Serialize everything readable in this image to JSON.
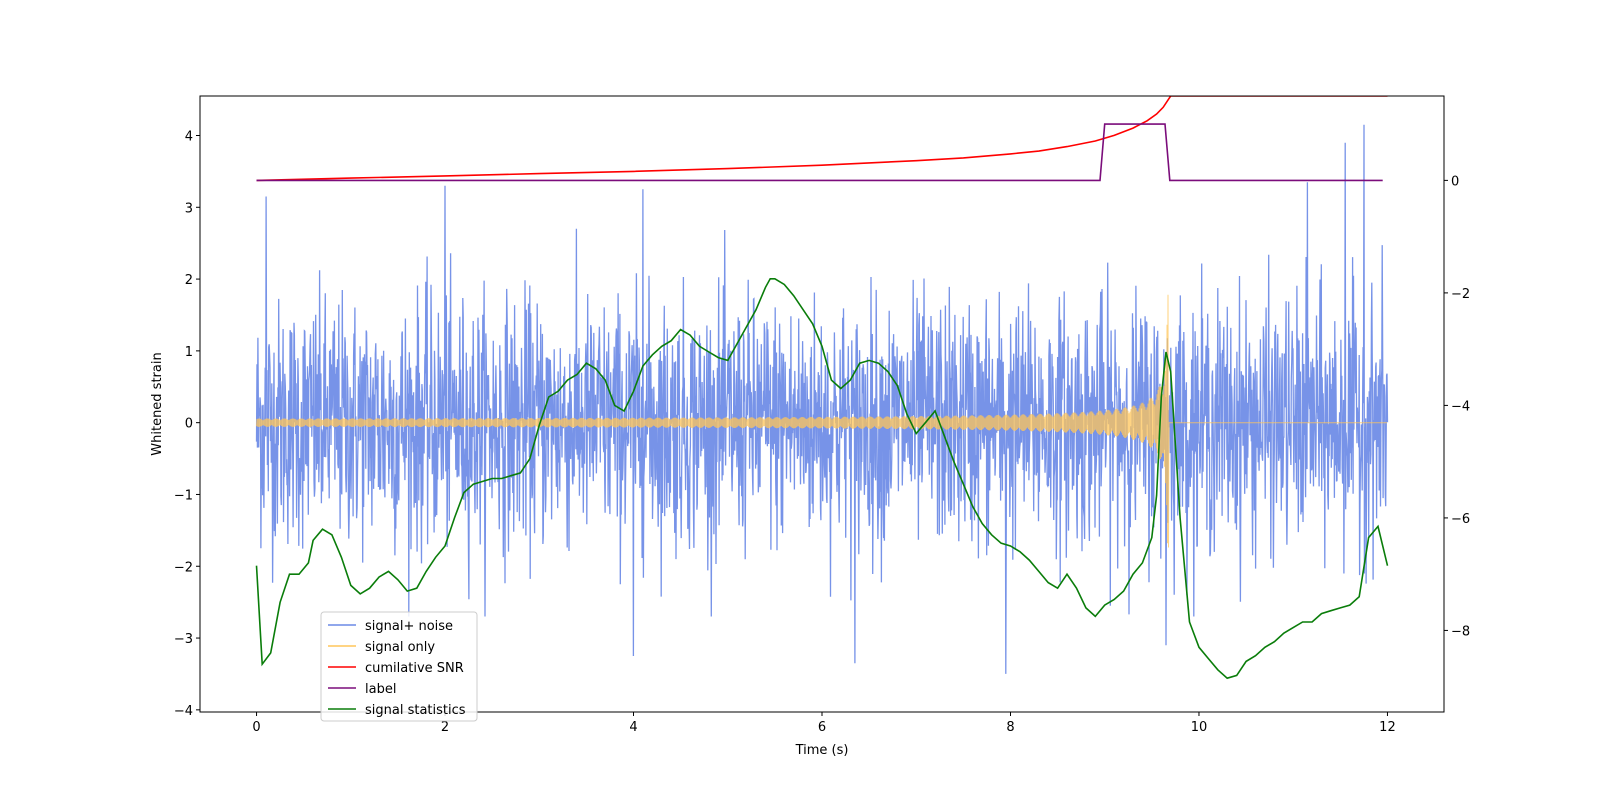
{
  "chart_data": {
    "type": "line",
    "title": "",
    "xlabel": "Time (s)",
    "ylabel": "Whitened strain",
    "xlim": [
      -0.6,
      12.6
    ],
    "ylim": [
      -4.03,
      4.55
    ],
    "y2lim": [
      -9.45,
      1.5
    ],
    "xticks": [
      0,
      2,
      4,
      6,
      8,
      10,
      12
    ],
    "xtick_labels": [
      "0",
      "2",
      "4",
      "6",
      "8",
      "10",
      "12"
    ],
    "yticks": [
      -4,
      -3,
      -2,
      -1,
      0,
      1,
      2,
      3,
      4
    ],
    "ytick_labels": [
      "−4",
      "−3",
      "−2",
      "−1",
      "0",
      "1",
      "2",
      "3",
      "4"
    ],
    "y2ticks": [
      -8,
      -6,
      -4,
      -2,
      0
    ],
    "y2tick_labels": [
      "−8",
      "−6",
      "−4",
      "−2",
      "0"
    ],
    "legend_position": "lower-left",
    "series": [
      {
        "name": "signal+ noise",
        "axis": "left",
        "color": "#6b8ae6",
        "kind": "noise",
        "x_range": [
          0,
          12
        ],
        "noise_std": 0.85,
        "envelope_max": 2.7,
        "envelope_min": -2.7,
        "notable_peaks": [
          [
            2.0,
            3.3
          ],
          [
            11.75,
            4.15
          ],
          [
            11.55,
            3.9
          ],
          [
            11.15,
            3.35
          ],
          [
            0.1,
            3.15
          ],
          [
            4.1,
            3.25
          ],
          [
            7.95,
            -3.5
          ],
          [
            9.65,
            -3.1
          ],
          [
            6.35,
            -3.35
          ],
          [
            4.0,
            -3.25
          ]
        ]
      },
      {
        "name": "signal only",
        "axis": "left",
        "color": "#ffc55a",
        "kind": "chirp",
        "x_range": [
          0,
          9.68
        ],
        "amplitude_start": 0.03,
        "amplitude_peak": 1.8,
        "merger_time": 9.68,
        "post_merger": 0.0
      },
      {
        "name": "cumilative SNR",
        "axis": "right",
        "color": "#ff0000",
        "x": [
          0,
          1,
          2,
          3,
          4,
          5,
          6,
          6.5,
          7,
          7.5,
          8,
          8.3,
          8.6,
          8.9,
          9.1,
          9.3,
          9.45,
          9.55,
          9.62,
          9.68,
          9.7,
          12
        ],
        "y": [
          0.0,
          0.04,
          0.08,
          0.12,
          0.16,
          0.21,
          0.27,
          0.31,
          0.35,
          0.4,
          0.47,
          0.52,
          0.6,
          0.7,
          0.8,
          0.93,
          1.06,
          1.18,
          1.3,
          1.45,
          1.5,
          1.5
        ]
      },
      {
        "name": "label",
        "axis": "right",
        "color": "#7b0d7b",
        "x": [
          0,
          8.95,
          9.0,
          9.64,
          9.69,
          11.95
        ],
        "y": [
          0,
          0,
          1,
          1,
          0,
          0
        ]
      },
      {
        "name": "signal statistics",
        "axis": "right",
        "color": "#0a7d0a",
        "x": [
          0,
          0.06,
          0.15,
          0.25,
          0.35,
          0.45,
          0.55,
          0.6,
          0.7,
          0.8,
          0.9,
          1.0,
          1.1,
          1.2,
          1.3,
          1.4,
          1.5,
          1.6,
          1.7,
          1.8,
          1.9,
          2.0,
          2.1,
          2.2,
          2.3,
          2.4,
          2.5,
          2.6,
          2.7,
          2.8,
          2.9,
          3.0,
          3.1,
          3.2,
          3.3,
          3.4,
          3.5,
          3.6,
          3.7,
          3.8,
          3.9,
          4.0,
          4.1,
          4.2,
          4.3,
          4.4,
          4.5,
          4.6,
          4.7,
          4.8,
          4.9,
          5.0,
          5.1,
          5.2,
          5.3,
          5.4,
          5.45,
          5.5,
          5.6,
          5.7,
          5.8,
          5.9,
          6.0,
          6.1,
          6.2,
          6.3,
          6.4,
          6.5,
          6.6,
          6.7,
          6.8,
          6.9,
          7.0,
          7.1,
          7.2,
          7.3,
          7.4,
          7.5,
          7.6,
          7.7,
          7.8,
          7.9,
          8.0,
          8.1,
          8.2,
          8.3,
          8.4,
          8.5,
          8.6,
          8.7,
          8.8,
          8.9,
          9.0,
          9.1,
          9.2,
          9.3,
          9.4,
          9.5,
          9.55,
          9.6,
          9.65,
          9.7,
          9.8,
          9.9,
          10.0,
          10.1,
          10.2,
          10.3,
          10.4,
          10.5,
          10.6,
          10.7,
          10.8,
          10.9,
          11.0,
          11.1,
          11.2,
          11.3,
          11.4,
          11.5,
          11.6,
          11.7,
          11.8,
          11.9,
          12.0
        ],
        "y": [
          -6.85,
          -8.6,
          -8.4,
          -7.5,
          -7.0,
          -7.0,
          -6.8,
          -6.4,
          -6.2,
          -6.3,
          -6.7,
          -7.2,
          -7.35,
          -7.25,
          -7.05,
          -6.95,
          -7.1,
          -7.3,
          -7.25,
          -6.95,
          -6.7,
          -6.5,
          -6.0,
          -5.55,
          -5.4,
          -5.35,
          -5.3,
          -5.3,
          -5.25,
          -5.2,
          -4.95,
          -4.35,
          -3.85,
          -3.75,
          -3.55,
          -3.45,
          -3.25,
          -3.35,
          -3.55,
          -4.0,
          -4.1,
          -3.75,
          -3.3,
          -3.1,
          -2.95,
          -2.85,
          -2.65,
          -2.75,
          -2.95,
          -3.05,
          -3.15,
          -3.2,
          -2.9,
          -2.6,
          -2.3,
          -1.9,
          -1.75,
          -1.75,
          -1.85,
          -2.05,
          -2.3,
          -2.55,
          -2.95,
          -3.55,
          -3.7,
          -3.55,
          -3.25,
          -3.2,
          -3.25,
          -3.4,
          -3.65,
          -4.15,
          -4.5,
          -4.3,
          -4.1,
          -4.55,
          -5.0,
          -5.4,
          -5.8,
          -6.1,
          -6.3,
          -6.45,
          -6.5,
          -6.6,
          -6.75,
          -6.95,
          -7.15,
          -7.25,
          -7.0,
          -7.25,
          -7.6,
          -7.75,
          -7.55,
          -7.45,
          -7.3,
          -7.0,
          -6.8,
          -6.35,
          -5.6,
          -3.85,
          -3.05,
          -3.4,
          -6.0,
          -7.85,
          -8.3,
          -8.5,
          -8.7,
          -8.85,
          -8.8,
          -8.55,
          -8.45,
          -8.3,
          -8.2,
          -8.05,
          -7.95,
          -7.85,
          -7.85,
          -7.7,
          -7.65,
          -7.6,
          -7.55,
          -7.4,
          -6.35,
          -6.15,
          -6.85
        ]
      }
    ]
  }
}
